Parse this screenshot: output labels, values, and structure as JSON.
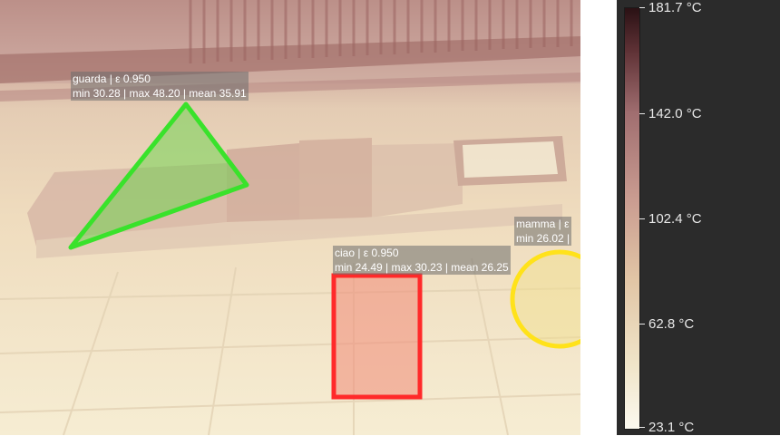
{
  "rois": [
    {
      "id": "guarda",
      "line1": "guarda | ε 0.950",
      "line2": "min 30.28 | max 48.20 | mean 35.91",
      "color": "#39e22b",
      "shape": "triangle"
    },
    {
      "id": "ciao",
      "line1": "ciao | ε 0.950",
      "line2": "min 24.49 | max 30.23 | mean 26.25",
      "color": "#ff2a2a",
      "shape": "rectangle"
    },
    {
      "id": "mamma",
      "line1": "mamma | ε",
      "line2": "min 26.02 |",
      "color": "#ffe21a",
      "shape": "circle"
    }
  ],
  "colorbar": {
    "ticks": [
      "181.7 °C",
      "142.0 °C",
      "102.4 °C",
      "62.8 °C",
      "23.1 °C"
    ],
    "max_label": "181.7 °C",
    "min_label": "23.1 °C"
  }
}
